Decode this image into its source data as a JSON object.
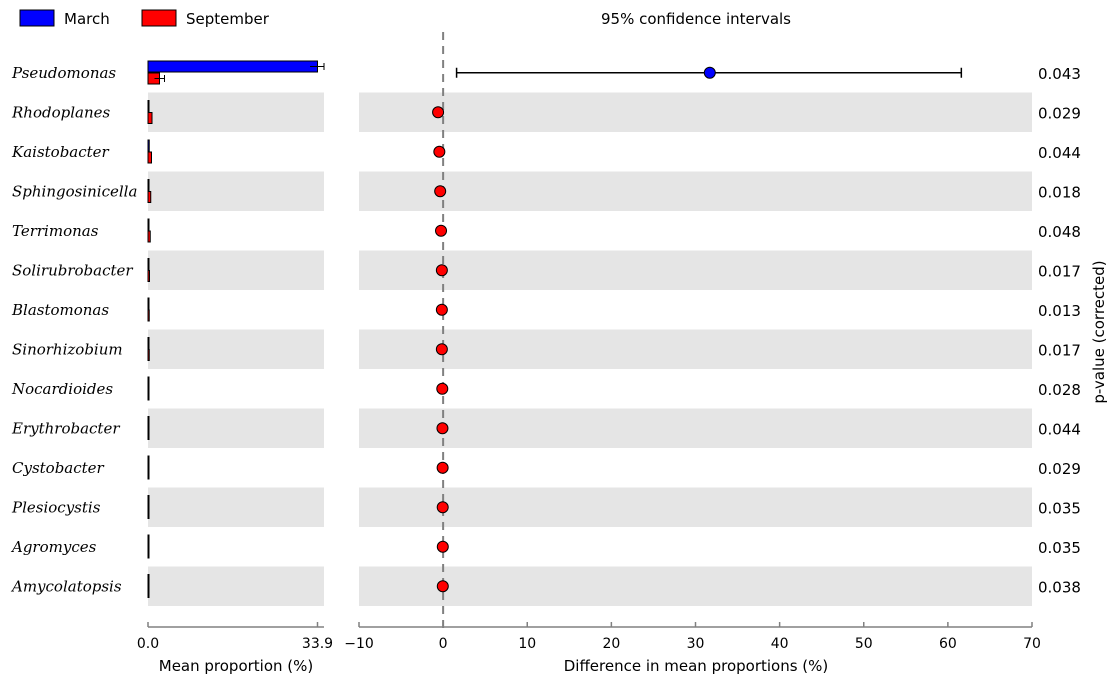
{
  "chart_data": [
    {
      "type": "bar",
      "orientation": "horizontal",
      "legend": {
        "placement": "top-left",
        "entries": [
          {
            "name": "March",
            "color": "#0000ff"
          },
          {
            "name": "September",
            "color": "#ff0000"
          }
        ]
      },
      "categories": [
        "Pseudomonas",
        "Rhodoplanes",
        "Kaistobacter",
        "Sphingosinicella",
        "Terrimonas",
        "Solirubrobacter",
        "Blastomonas",
        "Sinorhizobium",
        "Nocardioides",
        "Erythrobacter",
        "Cystobacter",
        "Plesiocystis",
        "Agromyces",
        "Amycolatopsis"
      ],
      "series": [
        {
          "name": "March",
          "color": "#0000ff",
          "values": [
            33.9,
            0.15,
            0.25,
            0.2,
            0.1,
            0.1,
            0.05,
            0.05,
            0.05,
            0.05,
            0.03,
            0.03,
            0.02,
            0.02
          ],
          "error": [
            1.5,
            0.05,
            0.05,
            0.05,
            0.03,
            0.03,
            0.02,
            0.02,
            0.02,
            0.02,
            0.01,
            0.01,
            0.01,
            0.01
          ]
        },
        {
          "name": "September",
          "color": "#ff0000",
          "values": [
            2.3,
            0.8,
            0.7,
            0.55,
            0.45,
            0.3,
            0.25,
            0.25,
            0.2,
            0.15,
            0.1,
            0.08,
            0.06,
            0.06
          ],
          "error": [
            1.0,
            0.1,
            0.1,
            0.08,
            0.05,
            0.05,
            0.04,
            0.04,
            0.03,
            0.03,
            0.02,
            0.02,
            0.02,
            0.02
          ]
        }
      ],
      "xlabel": "Mean proportion (%)",
      "xticks": [
        "0.0",
        "33.9"
      ],
      "xlim": [
        0,
        35.2
      ]
    },
    {
      "type": "scatter",
      "title": "95% confidence intervals",
      "categories": [
        "Pseudomonas",
        "Rhodoplanes",
        "Kaistobacter",
        "Sphingosinicella",
        "Terrimonas",
        "Solirubrobacter",
        "Blastomonas",
        "Sinorhizobium",
        "Nocardioides",
        "Erythrobacter",
        "Cystobacter",
        "Plesiocystis",
        "Agromyces",
        "Amycolatopsis"
      ],
      "points": [
        {
          "diff": 31.7,
          "ci_low": 1.6,
          "ci_high": 61.6,
          "color": "#0000ff"
        },
        {
          "diff": -0.6,
          "ci_low": -0.9,
          "ci_high": -0.3,
          "color": "#ff0000"
        },
        {
          "diff": -0.45,
          "ci_low": -0.75,
          "ci_high": -0.2,
          "color": "#ff0000"
        },
        {
          "diff": -0.35,
          "ci_low": -0.6,
          "ci_high": -0.15,
          "color": "#ff0000"
        },
        {
          "diff": -0.25,
          "ci_low": -0.45,
          "ci_high": -0.1,
          "color": "#ff0000"
        },
        {
          "diff": -0.15,
          "ci_low": -0.3,
          "ci_high": -0.05,
          "color": "#ff0000"
        },
        {
          "diff": -0.15,
          "ci_low": -0.3,
          "ci_high": -0.05,
          "color": "#ff0000"
        },
        {
          "diff": -0.15,
          "ci_low": -0.3,
          "ci_high": -0.05,
          "color": "#ff0000"
        },
        {
          "diff": -0.1,
          "ci_low": -0.2,
          "ci_high": -0.03,
          "color": "#ff0000"
        },
        {
          "diff": -0.08,
          "ci_low": -0.15,
          "ci_high": -0.02,
          "color": "#ff0000"
        },
        {
          "diff": -0.06,
          "ci_low": -0.12,
          "ci_high": -0.02,
          "color": "#ff0000"
        },
        {
          "diff": -0.05,
          "ci_low": -0.1,
          "ci_high": -0.01,
          "color": "#ff0000"
        },
        {
          "diff": -0.04,
          "ci_low": -0.08,
          "ci_high": -0.01,
          "color": "#ff0000"
        },
        {
          "diff": -0.04,
          "ci_low": -0.08,
          "ci_high": -0.01,
          "color": "#ff0000"
        }
      ],
      "xlabel": "Difference in mean proportions (%)",
      "xticks": [
        -10,
        0,
        10,
        20,
        30,
        40,
        50,
        60,
        70
      ],
      "xlim": [
        -10,
        70
      ],
      "reference_line": 0,
      "ylabel": "p-value (corrected)",
      "p_values": [
        "0.043",
        "0.029",
        "0.044",
        "0.018",
        "0.048",
        "0.017",
        "0.013",
        "0.017",
        "0.028",
        "0.044",
        "0.029",
        "0.035",
        "0.035",
        "0.038"
      ]
    }
  ],
  "colors": {
    "row_shade": "#e5e5e5",
    "axis": "#808080"
  }
}
